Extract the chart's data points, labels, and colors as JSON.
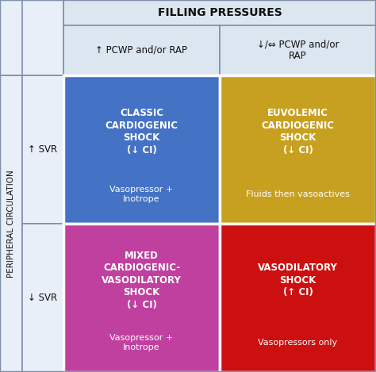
{
  "title": "FILLING PRESSURES",
  "col_headers": [
    "↑ PCWP and/or RAP",
    "↓/⇔ PCWP and/or\nRAP"
  ],
  "row_headers": [
    "↑ SVR",
    "↓ SVR"
  ],
  "side_label": "PERIPHERAL CIRCULATION",
  "cells": [
    {
      "title": "CLASSIC\nCARDIOGENIC\nSHOCK\n(↓ CI)",
      "subtitle": "Vasopressor +\nInotrope",
      "color": "#4472C4",
      "text_color": "#FFFFFF",
      "row": 0,
      "col": 0
    },
    {
      "title": "EUVOLEMIC\nCARDIOGENIC\nSHOCK\n(↓ CI)",
      "subtitle": "Fluids then vasoactives",
      "color": "#C8A020",
      "text_color": "#FFFFFF",
      "row": 0,
      "col": 1
    },
    {
      "title": "MIXED\nCARDIOGENIC-\nVASODILATORY\nSHOCK\n(↓ CI)",
      "subtitle": "Vasopressor +\nInotrope",
      "color": "#C040A0",
      "text_color": "#FFFFFF",
      "row": 1,
      "col": 0
    },
    {
      "title": "VASODILATORY\nSHOCK\n(↑ CI)",
      "subtitle": "Vasopressors only",
      "color": "#CC1010",
      "text_color": "#FFFFFF",
      "row": 1,
      "col": 1
    }
  ],
  "header_bg": "#DCE6F1",
  "header_text": "#111111",
  "border_color": "#8090A8",
  "side_row_bg": "#E8EFF8",
  "fig_width": 4.74,
  "fig_height": 4.69,
  "dpi": 100
}
